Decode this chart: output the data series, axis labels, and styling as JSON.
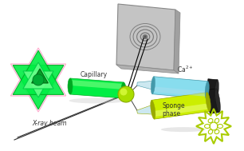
{
  "bg_color": "#ffffff",
  "capillary_label": "Capillary",
  "xray_label": "X-ray beam",
  "ca_label": "Ca$^{2+}$",
  "sponge_label": "Sponge\nphase",
  "green": "#00ee44",
  "green_dark": "#00aa22",
  "green_bright": "#44ff66",
  "lime": "#ccee00",
  "lime_dark": "#99aa00",
  "lime_bright": "#eeff66",
  "cyan_body": "#88ddee",
  "cyan_dark": "#4499aa",
  "cyan_end": "#66bbcc",
  "gray_det": "#c0c0c0",
  "gray_edge": "#999999",
  "black_end": "#1a1a1a",
  "shadow": "#bbbbbb"
}
